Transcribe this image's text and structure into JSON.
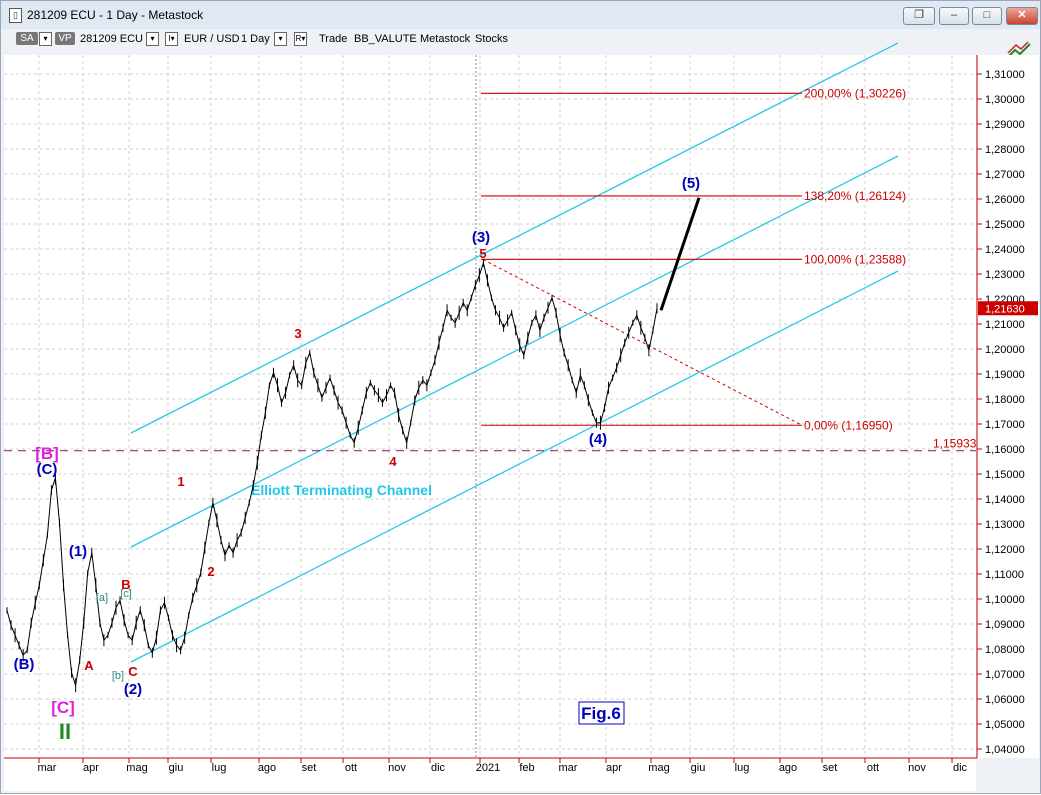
{
  "window": {
    "title": "281209 ECU - 1 Day - Metastock",
    "icon": "document-icon",
    "buttons": [
      "restore-icon",
      "minimize-icon",
      "maximize-icon",
      "close-icon"
    ]
  },
  "toolbar": {
    "sa_label": "SA",
    "vp_label": "VP",
    "symbol": "281209 ECU",
    "pair": "EUR / USD",
    "period": "1 Day",
    "r_label": "R",
    "trade_label": "Trade",
    "bb_label": "BB_VALUTE",
    "metastock_label": "Metastock",
    "stocks_label": "Stocks",
    "drop_glyph": "▾",
    "i_glyph": "I▾",
    "r_glyph": "R▾"
  },
  "chart_data": {
    "type": "line",
    "title": "",
    "xlabel": "",
    "ylabel": "",
    "ylim": [
      1.036,
      1.3185
    ],
    "y_ticks": [
      "1,04000",
      "1,05000",
      "1,06000",
      "1,07000",
      "1,08000",
      "1,09000",
      "1,10000",
      "1,11000",
      "1,12000",
      "1,13000",
      "1,14000",
      "1,15000",
      "1,16000",
      "1,17000",
      "1,18000",
      "1,19000",
      "1,20000",
      "1,21000",
      "1,22000",
      "1,23000",
      "1,24000",
      "1,25000",
      "1,26000",
      "1,27000",
      "1,28000",
      "1,29000",
      "1,30000",
      "1,31000"
    ],
    "x_ticks": [
      "mar",
      "apr",
      "mag",
      "giu",
      "lug",
      "ago",
      "set",
      "ott",
      "nov",
      "dic",
      "2021",
      "feb",
      "mar",
      "apr",
      "mag",
      "giu",
      "lug",
      "ago",
      "set",
      "ott",
      "nov",
      "dic"
    ],
    "grid": true,
    "colors": {
      "price": "#000000",
      "channel": "#22c8e8",
      "fib": "#cc0000",
      "wave_blue": "#0000bb",
      "wave_red": "#cc0000",
      "magenta": "#dd22dd",
      "green": "#228822",
      "teal": "#2a8a8a",
      "projection": "#000000"
    },
    "series": [
      {
        "values": [
          1.0955,
          1.0895,
          1.0855,
          1.0815,
          1.0775,
          1.0795,
          1.0905,
          1.0985,
          1.1055,
          1.1155,
          1.1255,
          1.1435,
          1.1485,
          1.1305,
          1.1055,
          1.0855,
          1.0705,
          1.0655,
          1.0755,
          1.0905,
          1.1105,
          1.1185,
          1.1055,
          1.0905,
          1.0835,
          1.0855,
          1.0905,
          1.0965,
          1.0995,
          1.0915,
          1.0855,
          1.0835,
          1.0905,
          1.0955,
          1.0895,
          1.0815,
          1.0785,
          1.0845,
          1.0955,
          1.0985,
          1.0925,
          1.0855,
          1.0815,
          1.0795,
          1.0845,
          1.0935,
          1.1005,
          1.1055,
          1.1105,
          1.1205,
          1.1305,
          1.1385,
          1.1315,
          1.1235,
          1.1175,
          1.1215,
          1.1185,
          1.1235,
          1.1265,
          1.1325,
          1.1385,
          1.1455,
          1.1545,
          1.1655,
          1.1745,
          1.1855,
          1.1905,
          1.1855,
          1.1785,
          1.1825,
          1.1895,
          1.1935,
          1.1875,
          1.1855,
          1.1945,
          1.1985,
          1.1905,
          1.1855,
          1.1805,
          1.1845,
          1.1885,
          1.1835,
          1.1785,
          1.1755,
          1.1705,
          1.1655,
          1.1625,
          1.1685,
          1.1755,
          1.1825,
          1.1865,
          1.1835,
          1.1815,
          1.1785,
          1.1815,
          1.1855,
          1.1825,
          1.1735,
          1.1675,
          1.1625,
          1.1705,
          1.1795,
          1.1845,
          1.1875,
          1.1855,
          1.1905,
          1.1955,
          1.2025,
          1.2085,
          1.2155,
          1.2125,
          1.2105,
          1.2145,
          1.2185,
          1.2155,
          1.2205,
          1.2255,
          1.2295,
          1.2345,
          1.2275,
          1.2205,
          1.2155,
          1.2125,
          1.2085,
          1.2115,
          1.2145,
          1.2075,
          1.2015,
          1.1975,
          1.2045,
          1.2105,
          1.2135,
          1.2075,
          1.2125,
          1.2165,
          1.2205,
          1.2145,
          1.2055,
          1.1985,
          1.1935,
          1.1875,
          1.1825,
          1.1895,
          1.1855,
          1.1795,
          1.1745,
          1.1705,
          1.1705,
          1.1765,
          1.1845,
          1.1885,
          1.1925,
          1.1975,
          1.2025,
          1.2065,
          1.2105,
          1.2135,
          1.2085,
          1.2045,
          1.1995,
          1.2075,
          1.2163
        ]
      }
    ],
    "projection": {
      "label": "(5)",
      "from": 1.2163,
      "to": 1.2605
    },
    "channel_labels": [
      "Elliott Terminating Channel"
    ],
    "fib_levels": [
      {
        "label": "200,00% (1,30226)",
        "value": 1.30226
      },
      {
        "label": "138,20% (1,26124)",
        "value": 1.26124
      },
      {
        "label": "100,00% (1,23588)",
        "value": 1.23588
      },
      {
        "label": "0,00% (1,16950)",
        "value": 1.1695
      }
    ],
    "reference_line": {
      "label": "1,15933",
      "value": 1.15933
    },
    "last_price": {
      "label": "1,21630",
      "value": 1.2163
    },
    "wave_labels": {
      "blue": [
        "(B)",
        "(C)",
        "(1)",
        "(2)",
        "(3)",
        "(4)",
        "(5)"
      ],
      "red": [
        "A",
        "B",
        "C",
        "1",
        "2",
        "3",
        "4",
        "5"
      ],
      "teal": [
        "[a]",
        "[b]",
        "[c]"
      ],
      "magenta": [
        "[B]",
        "[C]"
      ],
      "green": [
        "II"
      ]
    },
    "fig_label": "Fig.6"
  }
}
